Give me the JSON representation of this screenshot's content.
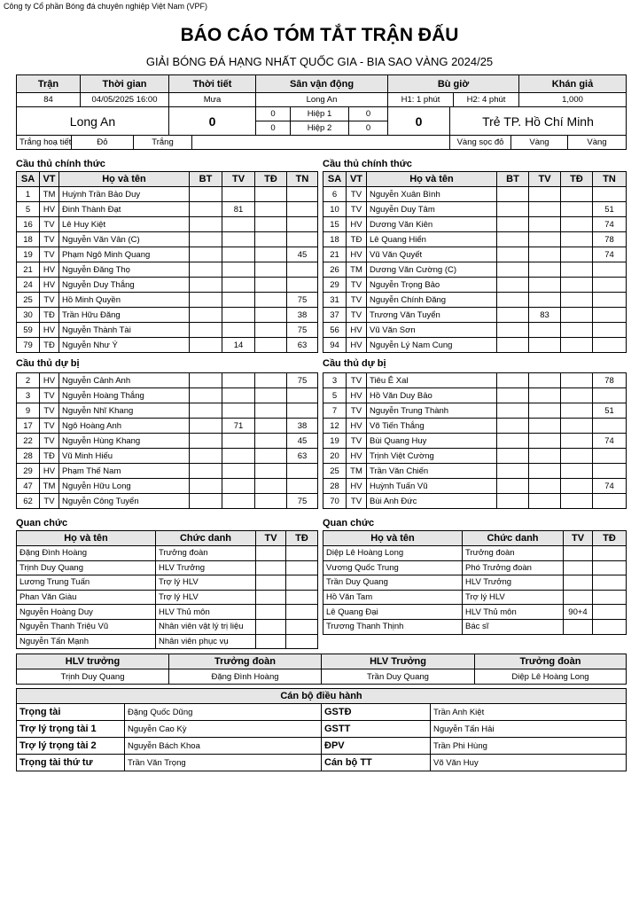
{
  "header": {
    "company": "Công ty Cổ phần Bóng đá chuyên nghiệp Việt Nam (VPF)",
    "title": "BÁO CÁO TÓM TẮT TRẬN ĐẤU",
    "subtitle": "GIẢI BÓNG ĐÁ HẠNG NHẤT QUỐC GIA - BIA SAO VÀNG 2024/25"
  },
  "match": {
    "columns": [
      "Trận",
      "Thời gian",
      "Thời tiết",
      "Sân vận động",
      "Bù giờ",
      "Khán giả"
    ],
    "number": 84,
    "time": "04/05/2025 16:00",
    "weather": "Mưa",
    "stadium": "Long An",
    "stoppage": [
      "H1: 1 phút",
      "H2: 4 phút"
    ],
    "attendance": "1,000",
    "home_team": "Long An",
    "home_score": 0,
    "away_team": "Trẻ TP. Hồ Chí Minh",
    "away_score": 0,
    "periods": [
      {
        "label": "Hiệp 1",
        "home": 0,
        "away": 0
      },
      {
        "label": "Hiệp 2",
        "home": 0,
        "away": 0
      }
    ],
    "home_kit": [
      "Trắng hoạ tiết",
      "Đỏ",
      "Trắng"
    ],
    "away_kit": [
      "Vàng sọc đỏ",
      "Vàng",
      "Vàng"
    ]
  },
  "lineups": {
    "starters_title": "Cầu thủ chính thức",
    "subs_title": "Cầu thủ dự bị",
    "columns": [
      "SA",
      "VT",
      "Họ và tên",
      "BT",
      "TV",
      "TĐ",
      "TN"
    ],
    "home": {
      "starters": [
        [
          1,
          "TM",
          "Huỳnh Trần Bảo Duy",
          null,
          null,
          null,
          null
        ],
        [
          5,
          "HV",
          "Đinh Thành Đạt",
          null,
          81,
          null,
          null
        ],
        [
          16,
          "TV",
          "Lê Huy Kiệt",
          null,
          null,
          null,
          null
        ],
        [
          18,
          "TV",
          "Nguyễn Văn Vân (C)",
          null,
          null,
          null,
          null
        ],
        [
          19,
          "TV",
          "Phạm Ngô Minh Quang",
          null,
          null,
          null,
          45
        ],
        [
          21,
          "HV",
          "Nguyễn Đăng Thọ",
          null,
          null,
          null,
          null
        ],
        [
          24,
          "HV",
          "Nguyễn Duy Thắng",
          null,
          null,
          null,
          null
        ],
        [
          25,
          "TV",
          "Hồ Minh Quyền",
          null,
          null,
          null,
          75
        ],
        [
          30,
          "TĐ",
          "Trần Hữu Đăng",
          null,
          null,
          null,
          38
        ],
        [
          59,
          "HV",
          "Nguyễn Thành Tài",
          null,
          null,
          null,
          75
        ],
        [
          79,
          "TĐ",
          "Nguyễn Như Ý",
          null,
          14,
          null,
          63
        ]
      ],
      "subs": [
        [
          2,
          "HV",
          "Nguyễn Cảnh Anh",
          null,
          null,
          null,
          75
        ],
        [
          3,
          "TV",
          "Nguyễn Hoàng Thắng",
          null,
          null,
          null,
          null
        ],
        [
          9,
          "TV",
          "Nguyễn Nhĩ Khang",
          null,
          null,
          null,
          null
        ],
        [
          17,
          "TV",
          "Ngô Hoàng Anh",
          null,
          71,
          null,
          38
        ],
        [
          22,
          "TV",
          "Nguyễn Hùng Khang",
          null,
          null,
          null,
          45
        ],
        [
          28,
          "TĐ",
          "Vũ Minh Hiếu",
          null,
          null,
          null,
          63
        ],
        [
          29,
          "HV",
          "Phạm Thế Nam",
          null,
          null,
          null,
          null
        ],
        [
          47,
          "TM",
          "Nguyễn Hữu Long",
          null,
          null,
          null,
          null
        ],
        [
          62,
          "TV",
          "Nguyễn Công Tuyển",
          null,
          null,
          null,
          75
        ]
      ]
    },
    "away": {
      "starters": [
        [
          6,
          "TV",
          "Nguyễn Xuân Bình",
          null,
          null,
          null,
          null
        ],
        [
          10,
          "TV",
          "Nguyễn Duy Tâm",
          null,
          null,
          null,
          51
        ],
        [
          15,
          "HV",
          "Dương Văn Kiên",
          null,
          null,
          null,
          74
        ],
        [
          18,
          "TĐ",
          "Lê Quang Hiển",
          null,
          null,
          null,
          78
        ],
        [
          21,
          "HV",
          "Vũ Văn Quyết",
          null,
          null,
          null,
          74
        ],
        [
          26,
          "TM",
          "Dương Văn Cường (C)",
          null,
          null,
          null,
          null
        ],
        [
          29,
          "TV",
          "Nguyễn Trọng Bảo",
          null,
          null,
          null,
          null
        ],
        [
          31,
          "TV",
          "Nguyễn Chính Đăng",
          null,
          null,
          null,
          null
        ],
        [
          37,
          "TV",
          "Trương Văn Tuyển",
          null,
          83,
          null,
          null
        ],
        [
          56,
          "HV",
          "Vũ Văn Sơn",
          null,
          null,
          null,
          null
        ],
        [
          94,
          "HV",
          "Nguyễn Lý Nam Cung",
          null,
          null,
          null,
          null
        ]
      ],
      "subs": [
        [
          3,
          "TV",
          "Tiêu Ê Xal",
          null,
          null,
          null,
          78
        ],
        [
          5,
          "HV",
          "Hồ Văn Duy Bảo",
          null,
          null,
          null,
          null
        ],
        [
          7,
          "TV",
          "Nguyễn Trung Thành",
          null,
          null,
          null,
          51
        ],
        [
          12,
          "HV",
          "Võ Tiến Thắng",
          null,
          null,
          null,
          null
        ],
        [
          19,
          "TV",
          "Bùi Quang Huy",
          null,
          null,
          null,
          74
        ],
        [
          20,
          "HV",
          "Trịnh Việt Cường",
          null,
          null,
          null,
          null
        ],
        [
          25,
          "TM",
          "Trần Văn Chiến",
          null,
          null,
          null,
          null
        ],
        [
          28,
          "HV",
          "Huỳnh Tuấn Vũ",
          null,
          null,
          null,
          74
        ],
        [
          70,
          "TV",
          "Bùi Anh Đức",
          null,
          null,
          null,
          null
        ]
      ]
    }
  },
  "officials": {
    "title": "Quan chức",
    "columns": [
      "Họ và tên",
      "Chức danh",
      "TV",
      "TĐ"
    ],
    "home": [
      [
        "Đặng Đình Hoàng",
        "Trưởng đoàn",
        null,
        null
      ],
      [
        "Trịnh Duy Quang",
        "HLV Trưởng",
        null,
        null
      ],
      [
        "Lương Trung Tuấn",
        "Trợ lý HLV",
        null,
        null
      ],
      [
        "Phan Văn Giàu",
        "Trợ lý HLV",
        null,
        null
      ],
      [
        "Nguyễn Hoàng Duy",
        "HLV Thủ môn",
        null,
        null
      ],
      [
        "Nguyễn Thanh Triệu Vũ",
        "Nhân viên vật lý trị liệu",
        null,
        null
      ],
      [
        "Nguyễn Tấn Mạnh",
        "Nhân viên phục vụ",
        null,
        null
      ]
    ],
    "away": [
      [
        "Diệp Lê Hoàng Long",
        "Trưởng đoàn",
        null,
        null
      ],
      [
        "Vương Quốc Trung",
        "Phó Trưởng đoàn",
        null,
        null
      ],
      [
        "Trần Duy Quang",
        "HLV Trưởng",
        null,
        null
      ],
      [
        "Hồ Văn Tam",
        "Trợ lý HLV",
        null,
        null
      ],
      [
        "Lê Quang Đại",
        "HLV Thủ môn",
        "90+4",
        null
      ],
      [
        "Trương Thanh Thịnh",
        "Bác sĩ",
        null,
        null
      ]
    ]
  },
  "signatures": {
    "titles": [
      "HLV trưởng",
      "Trưởng đoàn",
      "HLV Trưởng",
      "Trưởng đoàn"
    ],
    "names": [
      "Trịnh Duy Quang",
      "Đặng Đình Hoàng",
      "Trần Duy Quang",
      "Diệp Lê Hoàng Long"
    ]
  },
  "match_officials": {
    "title": "Cán bộ điều hành",
    "rows": [
      [
        "Trọng tài",
        "Đặng Quốc Dũng",
        "GSTĐ",
        "Trần Anh Kiệt"
      ],
      [
        "Trợ lý trọng tài 1",
        "Nguyễn Cao Kỳ",
        "GSTT",
        "Nguyễn Tấn Hải"
      ],
      [
        "Trợ lý trọng tài 2",
        "Nguyễn Bách Khoa",
        "ĐPV",
        "Trần Phi Hùng"
      ],
      [
        "Trọng tài thứ tư",
        "Trần Văn Trọng",
        "Cán bộ TT",
        "Võ Văn Huy"
      ]
    ]
  }
}
